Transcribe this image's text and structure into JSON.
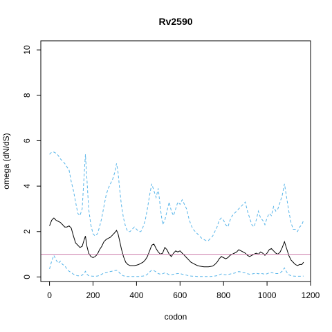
{
  "chart_data": {
    "type": "line",
    "title": "Rv2590",
    "xlabel": "codon",
    "ylabel": "omega (dN/dS)",
    "xlim": [
      -40,
      1200
    ],
    "ylim": [
      -0.2,
      10.4
    ],
    "xticks": [
      0,
      200,
      400,
      600,
      800,
      1000,
      1200
    ],
    "yticks": [
      0,
      2,
      4,
      6,
      8,
      10
    ],
    "grid": false,
    "legend": "none",
    "reference_line": {
      "y": 1,
      "color": "#cc79a7"
    },
    "series": [
      {
        "role": "estimate",
        "color": "#000000",
        "style": "solid",
        "x": [
          0,
          10,
          20,
          30,
          40,
          50,
          60,
          70,
          80,
          90,
          100,
          110,
          120,
          130,
          140,
          150,
          158,
          165,
          172,
          180,
          190,
          200,
          210,
          220,
          230,
          240,
          250,
          260,
          270,
          280,
          290,
          300,
          308,
          315,
          322,
          330,
          340,
          350,
          360,
          370,
          380,
          390,
          400,
          410,
          420,
          430,
          440,
          450,
          460,
          470,
          480,
          490,
          500,
          510,
          520,
          530,
          540,
          550,
          560,
          570,
          580,
          590,
          600,
          610,
          620,
          630,
          640,
          650,
          660,
          670,
          680,
          690,
          700,
          710,
          720,
          730,
          740,
          750,
          760,
          770,
          780,
          790,
          800,
          810,
          820,
          830,
          840,
          850,
          860,
          870,
          880,
          890,
          900,
          910,
          920,
          930,
          940,
          950,
          960,
          970,
          980,
          990,
          1000,
          1010,
          1020,
          1030,
          1040,
          1050,
          1060,
          1070,
          1080,
          1090,
          1100,
          1110,
          1120,
          1130,
          1140,
          1150,
          1160,
          1168
        ],
        "values": [
          2.25,
          2.5,
          2.6,
          2.5,
          2.45,
          2.4,
          2.3,
          2.2,
          2.2,
          2.25,
          2.15,
          1.8,
          1.5,
          1.4,
          1.3,
          1.35,
          1.6,
          1.8,
          1.35,
          1.05,
          0.9,
          0.85,
          0.9,
          1.0,
          1.2,
          1.35,
          1.55,
          1.65,
          1.7,
          1.75,
          1.85,
          1.95,
          2.05,
          1.9,
          1.6,
          1.25,
          0.9,
          0.65,
          0.55,
          0.5,
          0.5,
          0.5,
          0.52,
          0.55,
          0.6,
          0.65,
          0.75,
          0.9,
          1.15,
          1.4,
          1.45,
          1.25,
          1.1,
          1.0,
          1.05,
          1.3,
          1.2,
          1.0,
          0.9,
          1.05,
          1.15,
          1.1,
          1.15,
          1.05,
          0.95,
          0.85,
          0.75,
          0.65,
          0.6,
          0.55,
          0.5,
          0.48,
          0.46,
          0.45,
          0.45,
          0.45,
          0.46,
          0.48,
          0.55,
          0.65,
          0.8,
          0.9,
          0.85,
          0.8,
          0.85,
          0.95,
          1.0,
          1.05,
          1.1,
          1.2,
          1.15,
          1.1,
          1.05,
          0.95,
          0.9,
          0.95,
          1.0,
          1.05,
          1.0,
          1.1,
          1.05,
          0.95,
          1.05,
          1.2,
          1.25,
          1.15,
          1.05,
          1.0,
          1.1,
          1.3,
          1.55,
          1.25,
          0.95,
          0.75,
          0.65,
          0.55,
          0.5,
          0.55,
          0.55,
          0.65
        ]
      },
      {
        "role": "upper",
        "color": "#56b4e9",
        "style": "dashed",
        "x": [
          0,
          10,
          20,
          30,
          40,
          50,
          60,
          70,
          80,
          90,
          100,
          110,
          120,
          130,
          140,
          150,
          158,
          165,
          172,
          180,
          190,
          200,
          210,
          220,
          230,
          240,
          250,
          260,
          270,
          280,
          290,
          300,
          308,
          315,
          322,
          330,
          340,
          350,
          360,
          370,
          380,
          390,
          400,
          410,
          420,
          430,
          440,
          450,
          460,
          470,
          480,
          490,
          500,
          510,
          520,
          530,
          540,
          550,
          560,
          570,
          580,
          590,
          600,
          610,
          620,
          630,
          640,
          650,
          660,
          670,
          680,
          690,
          700,
          710,
          720,
          730,
          740,
          750,
          760,
          770,
          780,
          790,
          800,
          810,
          820,
          830,
          840,
          850,
          860,
          870,
          880,
          890,
          900,
          910,
          920,
          930,
          940,
          950,
          960,
          970,
          980,
          990,
          1000,
          1010,
          1020,
          1030,
          1040,
          1050,
          1060,
          1070,
          1080,
          1090,
          1100,
          1110,
          1120,
          1130,
          1140,
          1150,
          1160,
          1168
        ],
        "values": [
          5.4,
          5.5,
          5.5,
          5.45,
          5.35,
          5.2,
          5.1,
          5.0,
          4.85,
          4.7,
          4.2,
          3.8,
          3.3,
          2.8,
          2.7,
          3.0,
          4.3,
          5.4,
          4.3,
          3.0,
          2.3,
          1.9,
          1.8,
          1.9,
          2.2,
          2.6,
          3.1,
          3.6,
          3.9,
          4.1,
          4.3,
          4.6,
          5.0,
          4.6,
          3.9,
          3.2,
          2.6,
          2.2,
          2.0,
          2.0,
          2.1,
          2.2,
          2.1,
          2.0,
          2.0,
          2.2,
          2.5,
          3.0,
          3.6,
          4.1,
          3.8,
          3.5,
          3.9,
          3.0,
          2.3,
          2.5,
          2.9,
          3.3,
          2.9,
          2.7,
          3.0,
          3.3,
          3.2,
          3.4,
          3.2,
          3.0,
          2.6,
          2.3,
          2.1,
          2.0,
          1.9,
          1.8,
          1.7,
          1.65,
          1.6,
          1.6,
          1.7,
          1.8,
          2.0,
          2.2,
          2.5,
          2.6,
          2.5,
          2.3,
          2.2,
          2.5,
          2.7,
          2.8,
          2.9,
          3.0,
          3.1,
          3.2,
          3.3,
          2.9,
          2.6,
          2.3,
          2.2,
          2.5,
          2.9,
          2.6,
          2.5,
          2.3,
          2.6,
          2.8,
          2.7,
          3.1,
          2.9,
          3.0,
          3.3,
          3.6,
          4.1,
          3.5,
          2.9,
          2.4,
          2.1,
          2.1,
          2.0,
          2.2,
          2.3,
          2.5
        ]
      },
      {
        "role": "lower",
        "color": "#56b4e9",
        "style": "dashed",
        "x": [
          0,
          10,
          20,
          30,
          40,
          50,
          60,
          70,
          80,
          90,
          100,
          110,
          120,
          130,
          140,
          150,
          158,
          165,
          172,
          180,
          190,
          200,
          210,
          220,
          230,
          240,
          250,
          260,
          270,
          280,
          290,
          300,
          308,
          315,
          322,
          330,
          340,
          350,
          360,
          370,
          380,
          390,
          400,
          410,
          420,
          430,
          440,
          450,
          460,
          470,
          480,
          490,
          500,
          510,
          520,
          530,
          540,
          550,
          560,
          570,
          580,
          590,
          600,
          610,
          620,
          630,
          640,
          650,
          660,
          670,
          680,
          690,
          700,
          710,
          720,
          730,
          740,
          750,
          760,
          770,
          780,
          790,
          800,
          810,
          820,
          830,
          840,
          850,
          860,
          870,
          880,
          890,
          900,
          910,
          920,
          930,
          940,
          950,
          960,
          970,
          980,
          990,
          1000,
          1010,
          1020,
          1030,
          1040,
          1050,
          1060,
          1070,
          1080,
          1090,
          1100,
          1110,
          1120,
          1130,
          1140,
          1150,
          1160,
          1168
        ],
        "values": [
          0.35,
          0.7,
          0.95,
          0.75,
          0.6,
          0.7,
          0.55,
          0.5,
          0.35,
          0.25,
          0.2,
          0.12,
          0.08,
          0.05,
          0.05,
          0.08,
          0.15,
          0.25,
          0.12,
          0.06,
          0.04,
          0.03,
          0.03,
          0.04,
          0.07,
          0.12,
          0.17,
          0.2,
          0.22,
          0.24,
          0.26,
          0.28,
          0.3,
          0.26,
          0.18,
          0.1,
          0.05,
          0.03,
          0.02,
          0.02,
          0.02,
          0.02,
          0.02,
          0.02,
          0.03,
          0.04,
          0.06,
          0.12,
          0.22,
          0.3,
          0.28,
          0.22,
          0.15,
          0.12,
          0.14,
          0.18,
          0.15,
          0.1,
          0.1,
          0.12,
          0.14,
          0.15,
          0.15,
          0.12,
          0.1,
          0.08,
          0.05,
          0.04,
          0.03,
          0.03,
          0.02,
          0.02,
          0.02,
          0.02,
          0.02,
          0.02,
          0.02,
          0.03,
          0.04,
          0.06,
          0.1,
          0.13,
          0.11,
          0.1,
          0.11,
          0.13,
          0.15,
          0.17,
          0.2,
          0.24,
          0.22,
          0.2,
          0.18,
          0.14,
          0.12,
          0.13,
          0.15,
          0.17,
          0.14,
          0.16,
          0.14,
          0.12,
          0.14,
          0.18,
          0.2,
          0.17,
          0.15,
          0.15,
          0.18,
          0.26,
          0.4,
          0.22,
          0.1,
          0.06,
          0.04,
          0.03,
          0.03,
          0.03,
          0.03,
          0.04
        ]
      }
    ]
  }
}
